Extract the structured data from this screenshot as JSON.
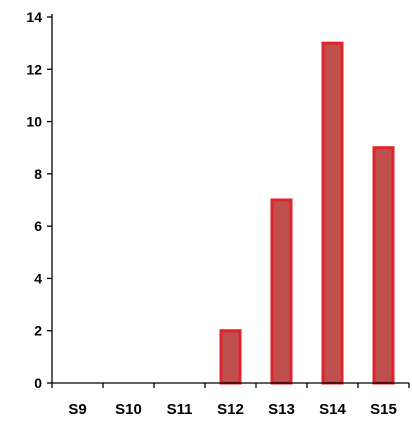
{
  "chart_data": {
    "type": "bar",
    "title": "",
    "xlabel": "",
    "ylabel": "",
    "categories": [
      "S9",
      "S10",
      "S11",
      "S12",
      "S13",
      "S14",
      "S15"
    ],
    "values": [
      0,
      0,
      0,
      2,
      7,
      13,
      9
    ],
    "ylim": [
      0,
      14
    ],
    "yticks": [
      0,
      2,
      4,
      6,
      8,
      10,
      12,
      14
    ],
    "grid": false,
    "legend": "none",
    "colors": {
      "bar_fill": "#c0504d",
      "bar_stroke": "#e0232d",
      "axis": "#000000"
    }
  }
}
